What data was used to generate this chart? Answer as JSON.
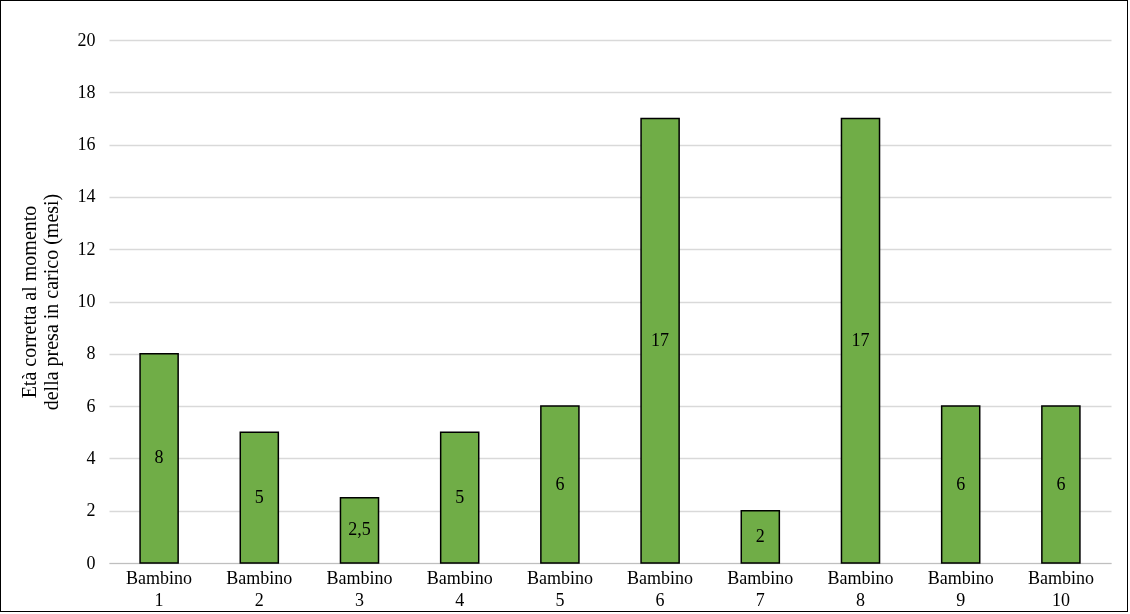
{
  "chart_data": {
    "type": "bar",
    "ylabel": "Età corretta al momento della presa in carico (mesi)",
    "categories": [
      "Bambino 1",
      "Bambino 2",
      "Bambino 3",
      "Bambino 4",
      "Bambino 5",
      "Bambino 6",
      "Bambino 7",
      "Bambino 8",
      "Bambino 9",
      "Bambino 10"
    ],
    "values": [
      8,
      5,
      2.5,
      5,
      6,
      17,
      2,
      17,
      6,
      6
    ],
    "value_labels": [
      "8",
      "5",
      "2,5",
      "5",
      "6",
      "17",
      "2",
      "17",
      "6",
      "6"
    ],
    "color": "#70ad47",
    "ylim": [
      0,
      20
    ],
    "yticks": [
      0,
      2,
      4,
      6,
      8,
      10,
      12,
      14,
      16,
      18,
      20
    ],
    "grid": "y"
  }
}
